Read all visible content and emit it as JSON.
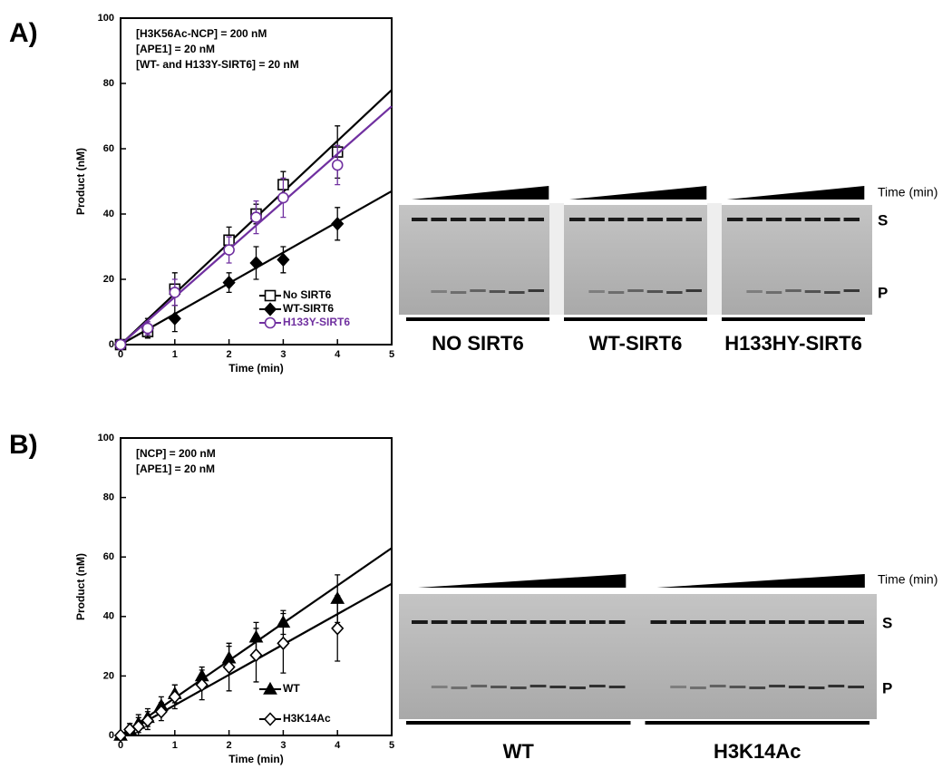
{
  "chart_data": [
    {
      "type": "scatter",
      "panel_label": "A)",
      "annotations": [
        "[H3K56Ac-NCP] = 200 nM",
        "[APE1] = 20 nM",
        "[WT- and H133Y-SIRT6] = 20 nM"
      ],
      "xlabel": "Time (min)",
      "ylabel": "Product (nM)",
      "xlim": [
        0,
        5
      ],
      "xticks": [
        0,
        1,
        2,
        3,
        4,
        5
      ],
      "ylim": [
        0,
        100
      ],
      "yticks": [
        0,
        20,
        40,
        60,
        80,
        100
      ],
      "legend": "lower right",
      "series": [
        {
          "name": "No SIRT6",
          "color": "#000000",
          "marker": "square",
          "filled": false,
          "x": [
            0,
            0.5,
            1,
            2,
            2.5,
            3,
            4
          ],
          "values": [
            0,
            4,
            17,
            32,
            40,
            49,
            59
          ],
          "errors": [
            0,
            2,
            5,
            4,
            3,
            4,
            8
          ],
          "fit": {
            "x": [
              0,
              5
            ],
            "values": [
              0,
              78
            ]
          }
        },
        {
          "name": "WT-SIRT6",
          "color": "#000000",
          "marker": "diamond",
          "filled": true,
          "x": [
            0,
            0.5,
            1,
            2,
            2.5,
            3,
            4
          ],
          "values": [
            0,
            5,
            8,
            19,
            25,
            26,
            37
          ],
          "errors": [
            0,
            3,
            4,
            3,
            5,
            4,
            5
          ],
          "fit": {
            "x": [
              0,
              5
            ],
            "values": [
              0,
              47
            ]
          }
        },
        {
          "name": "H133Y-SIRT6",
          "color": "#7030a0",
          "marker": "circle",
          "filled": false,
          "x": [
            0,
            0.5,
            1,
            2,
            2.5,
            3,
            4
          ],
          "values": [
            0,
            5,
            16,
            29,
            39,
            45,
            55
          ],
          "errors": [
            0,
            2,
            4,
            4,
            5,
            6,
            6
          ],
          "fit": {
            "x": [
              0,
              5
            ],
            "values": [
              0,
              73
            ]
          }
        }
      ],
      "gel": {
        "time_label": "Time (min)",
        "bands": [
          "S",
          "P"
        ],
        "lanes": [
          "NO SIRT6",
          "WT-SIRT6",
          "H133HY-SIRT6"
        ]
      }
    },
    {
      "type": "scatter",
      "panel_label": "B)",
      "annotations": [
        "[NCP] = 200 nM",
        "[APE1] = 20 nM"
      ],
      "xlabel": "Time (min)",
      "ylabel": "Product (nM)",
      "xlim": [
        0,
        5
      ],
      "xticks": [
        0,
        1,
        2,
        3,
        4,
        5
      ],
      "ylim": [
        0,
        100
      ],
      "yticks": [
        0,
        20,
        40,
        60,
        80,
        100
      ],
      "legend": "lower right",
      "series": [
        {
          "name": "WT",
          "color": "#000000",
          "marker": "triangle",
          "filled": true,
          "x": [
            0,
            0.17,
            0.33,
            0.5,
            0.75,
            1,
            1.5,
            2,
            2.5,
            3,
            4
          ],
          "values": [
            0,
            2,
            4,
            6,
            10,
            14,
            20,
            26,
            33,
            38,
            46
          ],
          "errors": [
            0,
            2,
            3,
            3,
            3,
            3,
            3,
            4,
            5,
            4,
            8
          ],
          "fit": {
            "x": [
              0,
              5
            ],
            "values": [
              0,
              63
            ]
          }
        },
        {
          "name": "H3K14Ac",
          "color": "#000000",
          "marker": "diamond",
          "filled": false,
          "x": [
            0,
            0.17,
            0.33,
            0.5,
            0.75,
            1,
            1.5,
            2,
            2.5,
            3,
            4
          ],
          "values": [
            0,
            2,
            3,
            5,
            8,
            13,
            17,
            23,
            27,
            31,
            36
          ],
          "errors": [
            0,
            2,
            3,
            3,
            3,
            4,
            5,
            8,
            9,
            10,
            11
          ],
          "fit": {
            "x": [
              0,
              5
            ],
            "values": [
              0,
              51
            ]
          }
        }
      ],
      "gel": {
        "time_label": "Time (min)",
        "bands": [
          "S",
          "P"
        ],
        "lanes": [
          "WT",
          "H3K14Ac"
        ]
      }
    }
  ]
}
